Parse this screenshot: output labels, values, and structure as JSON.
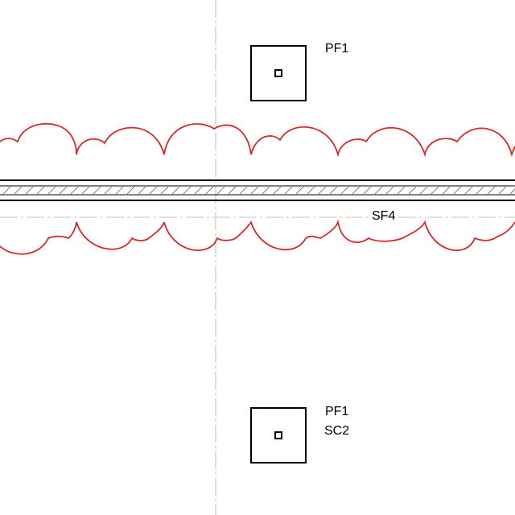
{
  "drawing": {
    "colors": {
      "background": "#ffffff",
      "linework": "#000000",
      "revision_cloud": "#d42a2a",
      "centerline": "#c8c8b4"
    },
    "footings": [
      {
        "id": "footing-top",
        "labels": [
          "PF1"
        ]
      },
      {
        "id": "footing-bottom",
        "labels": [
          "PF1",
          "SC2"
        ]
      }
    ],
    "strip_footing": {
      "label": "SF4"
    }
  }
}
